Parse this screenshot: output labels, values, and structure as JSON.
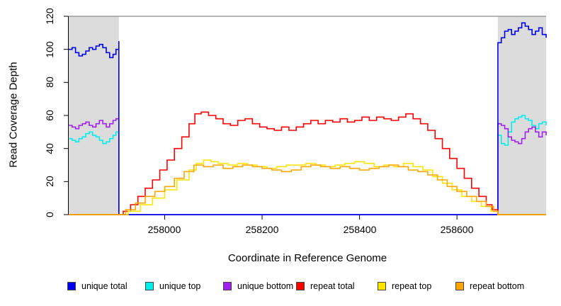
{
  "chart_data": {
    "type": "line",
    "title": "",
    "xlabel": "Coordinate in Reference Genome",
    "ylabel": "Read Coverage Depth",
    "xlim": [
      257803,
      258783
    ],
    "ylim": [
      0,
      120
    ],
    "xticks": [
      258000,
      258200,
      258400,
      258600
    ],
    "xtick_labels": [
      "258000",
      "258200",
      "258400",
      "258600"
    ],
    "yticks": [
      0,
      20,
      40,
      60,
      80,
      100,
      120
    ],
    "ytick_labels": [
      "0",
      "20",
      "40",
      "60",
      "80",
      "100",
      "120"
    ],
    "grid": "off",
    "shade_color": "#DCDCDC",
    "shaded_regions": [
      [
        257803,
        257906
      ],
      [
        258684,
        258783
      ]
    ],
    "top_rule_color": "#8A8A8A",
    "axis_color": "#000000",
    "legend_position": "bottom-horizontal",
    "legend": [
      {
        "label": "unique total",
        "color": "#0000EE"
      },
      {
        "label": "unique top",
        "color": "#00EEEE"
      },
      {
        "label": "unique bottom",
        "color": "#A020F0"
      },
      {
        "label": "repeat total",
        "color": "#FF0000"
      },
      {
        "label": "repeat top",
        "color": "#FFE400"
      },
      {
        "label": "repeat bottom",
        "color": "#FFA500"
      }
    ],
    "series": [
      {
        "name": "unique total",
        "color": "#0000EE",
        "x": [
          257803,
          257810,
          257817,
          257824,
          257831,
          257838,
          257845,
          257852,
          257859,
          257866,
          257873,
          257880,
          257887,
          257894,
          257900,
          257906,
          257906,
          258684,
          258684,
          258691,
          258698,
          258705,
          258712,
          258719,
          258726,
          258733,
          258740,
          258747,
          258754,
          258761,
          258768,
          258775,
          258783
        ],
        "y": [
          100,
          101,
          98,
          96,
          97,
          99,
          101,
          100,
          102,
          103,
          101,
          98,
          95,
          97,
          100,
          105,
          0,
          0,
          104,
          107,
          111,
          112,
          109,
          111,
          113,
          116,
          114,
          112,
          109,
          111,
          113,
          109,
          107
        ]
      },
      {
        "name": "unique top",
        "color": "#00EEEE",
        "x": [
          257803,
          257810,
          257817,
          257824,
          257831,
          257838,
          257845,
          257852,
          257859,
          257866,
          257873,
          257880,
          257887,
          257894,
          257900,
          257906,
          257906,
          258684,
          258684,
          258691,
          258698,
          258705,
          258712,
          258719,
          258726,
          258733,
          258740,
          258747,
          258754,
          258761,
          258768,
          258775,
          258783
        ],
        "y": [
          46,
          45,
          44,
          46,
          47,
          49,
          50,
          48,
          47,
          45,
          43,
          44,
          46,
          48,
          50,
          50,
          0,
          0,
          48,
          43,
          42,
          50,
          56,
          58,
          59,
          60,
          58,
          57,
          54,
          52,
          55,
          56,
          54
        ]
      },
      {
        "name": "unique bottom",
        "color": "#A020F0",
        "x": [
          257803,
          257810,
          257817,
          257824,
          257831,
          257838,
          257845,
          257852,
          257859,
          257866,
          257873,
          257880,
          257887,
          257894,
          257900,
          257906,
          257906,
          258684,
          258684,
          258691,
          258698,
          258705,
          258712,
          258719,
          258726,
          258733,
          258740,
          258747,
          258754,
          258761,
          258768,
          258775,
          258783
        ],
        "y": [
          54,
          53,
          52,
          54,
          55,
          56,
          54,
          53,
          55,
          57,
          55,
          53,
          55,
          57,
          58,
          58,
          0,
          0,
          55,
          54,
          52,
          47,
          45,
          44,
          43,
          46,
          50,
          52,
          53,
          50,
          47,
          50,
          48
        ]
      },
      {
        "name": "repeat total",
        "color": "#FF0000",
        "x": [
          257803,
          257906,
          257915,
          257930,
          257945,
          257960,
          257975,
          257990,
          258005,
          258020,
          258035,
          258050,
          258062,
          258075,
          258090,
          258105,
          258120,
          258135,
          258150,
          258165,
          258180,
          258195,
          258210,
          258225,
          258240,
          258255,
          258270,
          258285,
          258300,
          258315,
          258330,
          258345,
          258360,
          258375,
          258390,
          258405,
          258420,
          258435,
          258450,
          258465,
          258480,
          258495,
          258510,
          258525,
          258540,
          258555,
          258570,
          258585,
          258600,
          258615,
          258630,
          258645,
          258660,
          258672,
          258684,
          258783
        ],
        "y": [
          0,
          0,
          2,
          6,
          11,
          16,
          21,
          27,
          33,
          40,
          47,
          55,
          61,
          62,
          60,
          58,
          55,
          54,
          57,
          58,
          55,
          53,
          52,
          51,
          53,
          51,
          53,
          55,
          57,
          55,
          57,
          56,
          58,
          56,
          57,
          59,
          57,
          59,
          58,
          57,
          59,
          61,
          58,
          55,
          51,
          46,
          40,
          34,
          28,
          22,
          16,
          11,
          6,
          3,
          0,
          0
        ]
      },
      {
        "name": "repeat top",
        "color": "#FFE400",
        "x": [
          257803,
          257906,
          257925,
          257950,
          257975,
          258000,
          258025,
          258050,
          258065,
          258080,
          258095,
          258110,
          258130,
          258150,
          258170,
          258190,
          258210,
          258230,
          258250,
          258270,
          258290,
          258310,
          258330,
          258350,
          258370,
          258390,
          258410,
          258430,
          258450,
          258470,
          258490,
          258510,
          258530,
          258550,
          258570,
          258590,
          258610,
          258630,
          258650,
          258670,
          258684,
          258783
        ],
        "y": [
          0,
          0,
          2,
          6,
          10,
          15,
          21,
          27,
          31,
          33,
          32,
          31,
          30,
          31,
          30,
          29,
          28,
          29,
          30,
          30,
          31,
          30,
          29,
          30,
          31,
          32,
          31,
          29,
          30,
          29,
          31,
          29,
          27,
          23,
          19,
          15,
          11,
          8,
          5,
          2,
          0,
          0
        ]
      },
      {
        "name": "repeat bottom",
        "color": "#FFA500",
        "x": [
          257803,
          257906,
          257920,
          257940,
          257960,
          257980,
          258000,
          258020,
          258040,
          258060,
          258080,
          258100,
          258120,
          258140,
          258160,
          258180,
          258200,
          258220,
          258240,
          258260,
          258280,
          258300,
          258320,
          258340,
          258360,
          258380,
          258400,
          258420,
          258440,
          258460,
          258480,
          258500,
          258520,
          258540,
          258560,
          258580,
          258600,
          258620,
          258640,
          258660,
          258675,
          258684,
          258783
        ],
        "y": [
          0,
          0,
          3,
          7,
          11,
          14,
          17,
          22,
          26,
          30,
          29,
          30,
          28,
          29,
          30,
          29,
          28,
          27,
          26,
          27,
          29,
          30,
          29,
          28,
          29,
          28,
          27,
          28,
          29,
          30,
          29,
          27,
          26,
          24,
          21,
          17,
          14,
          11,
          8,
          5,
          2,
          0,
          0
        ]
      }
    ]
  }
}
